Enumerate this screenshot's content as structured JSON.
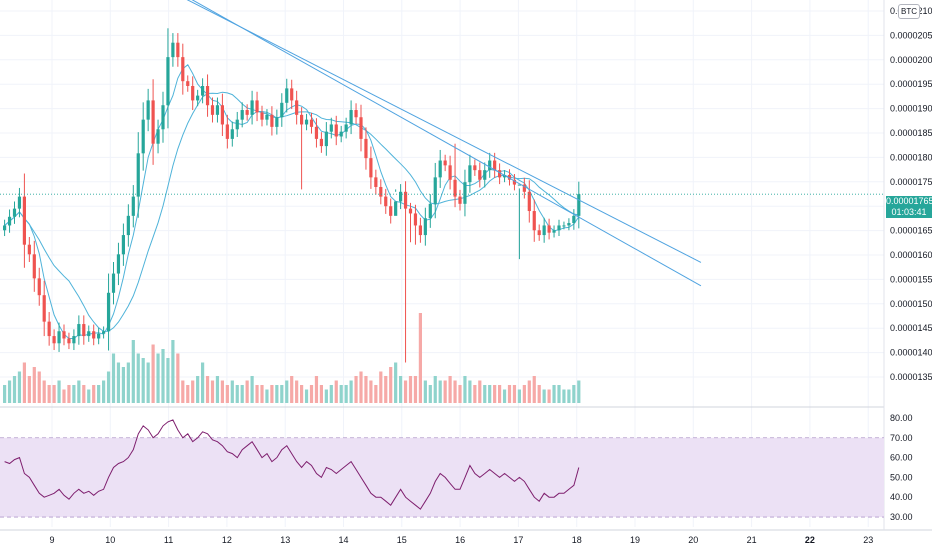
{
  "symbol_badge": "BTC",
  "last_price": {
    "value_label": "0.00001765",
    "countdown": "01:03:41",
    "value": 1.765e-05
  },
  "colors": {
    "up": "#26a69a",
    "down": "#ef5350",
    "ma": "#4fb3d9",
    "trendline": "#4fa3e0",
    "rsi_line": "#7e1f6e",
    "rsi_band": "#ece1f5"
  },
  "chart_data": [
    {
      "type": "candlestick",
      "title": "",
      "x_tick_labels": [
        "9",
        "10",
        "11",
        "12",
        "13",
        "14",
        "15",
        "16",
        "17",
        "18",
        "19",
        "20",
        "21",
        "22",
        "23"
      ],
      "bold_x_ticks": [
        "22"
      ],
      "y_tick_labels": [
        "0.00002100",
        "0.00002050",
        "0.00002000",
        "0.00001950",
        "0.00001900",
        "0.00001850",
        "0.00001800",
        "0.00001750",
        "0.00001700",
        "0.00001650",
        "0.00001600",
        "0.00001550",
        "0.00001500",
        "0.00001450",
        "0.00001400",
        "0.00001350"
      ],
      "ylim": [
        1.335e-05,
        2.148e-05
      ],
      "closes": [
        1.7e-05,
        1.718e-05,
        1.735e-05,
        1.76e-05,
        1.66e-05,
        1.64e-05,
        1.59e-05,
        1.555e-05,
        1.5e-05,
        1.47e-05,
        1.455e-05,
        1.48e-05,
        1.465e-05,
        1.455e-05,
        1.47e-05,
        1.495e-05,
        1.47e-05,
        1.48e-05,
        1.465e-05,
        1.475e-05,
        1.48e-05,
        1.56e-05,
        1.6e-05,
        1.64e-05,
        1.68e-05,
        1.72e-05,
        1.76e-05,
        1.85e-05,
        1.92e-05,
        1.96e-05,
        1.87e-05,
        1.9e-05,
        1.95e-05,
        2.05e-05,
        2.08e-05,
        2.05e-05,
        2e-05,
        1.99e-05,
        1.96e-05,
        1.97e-05,
        1.99e-05,
        1.95e-05,
        1.93e-05,
        1.95e-05,
        1.91e-05,
        1.88e-05,
        1.9e-05,
        1.92e-05,
        1.94e-05,
        1.93e-05,
        1.96e-05,
        1.935e-05,
        1.92e-05,
        1.93e-05,
        1.905e-05,
        1.925e-05,
        1.955e-05,
        1.985e-05,
        1.96e-05,
        1.93e-05,
        1.91e-05,
        1.92e-05,
        1.905e-05,
        1.88e-05,
        1.865e-05,
        1.895e-05,
        1.91e-05,
        1.885e-05,
        1.895e-05,
        1.91e-05,
        1.94e-05,
        1.925e-05,
        1.88e-05,
        1.84e-05,
        1.8e-05,
        1.78e-05,
        1.76e-05,
        1.74e-05,
        1.72e-05,
        1.75e-05,
        1.77e-05,
        1.735e-05,
        1.725e-05,
        1.7e-05,
        1.68e-05,
        1.715e-05,
        1.745e-05,
        1.8e-05,
        1.835e-05,
        1.825e-05,
        1.795e-05,
        1.76e-05,
        1.745e-05,
        1.79e-05,
        1.825e-05,
        1.815e-05,
        1.795e-05,
        1.815e-05,
        1.835e-05,
        1.815e-05,
        1.8e-05,
        1.805e-05,
        1.795e-05,
        1.785e-05,
        1.785e-05,
        1.77e-05,
        1.73e-05,
        1.69e-05,
        1.68e-05,
        1.7e-05,
        1.685e-05,
        1.69e-05,
        1.7e-05,
        1.7e-05,
        1.705e-05,
        1.72e-05,
        1.765e-05
      ],
      "sma_short_label": "",
      "sma_long_label": ""
    },
    {
      "type": "bar",
      "title": "",
      "series": [
        {
          "values": [
            0.2,
            0.25,
            0.3,
            0.35,
            0.45,
            0.3,
            0.4,
            0.35,
            0.25,
            0.2,
            0.2,
            0.25,
            0.15,
            0.2,
            0.2,
            0.25,
            0.2,
            0.15,
            0.2,
            0.2,
            0.25,
            0.35,
            0.55,
            0.45,
            0.4,
            0.45,
            0.7,
            0.55,
            0.5,
            0.45,
            0.65,
            0.55,
            0.6,
            0.5,
            0.7,
            0.55,
            0.25,
            0.2,
            0.25,
            0.3,
            0.45,
            0.3,
            0.25,
            0.3,
            0.25,
            0.2,
            0.25,
            0.2,
            0.2,
            0.25,
            0.3,
            0.2,
            0.2,
            0.15,
            0.2,
            0.2,
            0.2,
            0.25,
            0.3,
            0.25,
            0.2,
            0.15,
            0.2,
            0.3,
            0.2,
            0.15,
            0.2,
            0.25,
            0.2,
            0.2,
            0.25,
            0.3,
            0.35,
            0.3,
            0.25,
            0.2,
            0.35,
            0.3,
            0.4,
            0.45,
            0.3,
            0.25,
            0.3,
            0.3,
            1.0,
            0.25,
            0.2,
            0.3,
            0.25,
            0.25,
            0.3,
            0.25,
            0.2,
            0.3,
            0.25,
            0.2,
            0.25,
            0.2,
            0.2,
            0.2,
            0.2,
            0.15,
            0.2,
            0.2,
            0.15,
            0.2,
            0.25,
            0.3,
            0.2,
            0.15,
            0.15,
            0.2,
            0.2,
            0.15,
            0.15,
            0.2,
            0.25
          ]
        }
      ]
    },
    {
      "type": "line",
      "title": "",
      "y_tick_labels": [
        "80.00",
        "70.00",
        "60.00",
        "50.00",
        "40.00",
        "30.00"
      ],
      "ylim": [
        27,
        82
      ],
      "band": [
        30,
        70
      ],
      "series": [
        {
          "values": [
            58,
            57,
            59,
            60,
            52,
            50,
            46,
            42,
            40,
            41,
            42,
            44,
            41,
            39,
            42,
            44,
            42,
            43,
            41,
            43,
            44,
            50,
            55,
            57,
            58,
            60,
            64,
            72,
            76,
            74,
            70,
            72,
            76,
            78,
            79,
            74,
            70,
            72,
            68,
            70,
            73,
            72,
            69,
            68,
            66,
            63,
            62,
            60,
            64,
            66,
            68,
            64,
            60,
            62,
            58,
            60,
            64,
            66,
            62,
            58,
            55,
            58,
            56,
            52,
            50,
            55,
            54,
            52,
            54,
            56,
            58,
            54,
            50,
            46,
            42,
            40,
            40,
            38,
            36,
            40,
            44,
            40,
            38,
            36,
            34,
            38,
            42,
            48,
            52,
            50,
            47,
            44,
            44,
            50,
            56,
            52,
            50,
            52,
            54,
            52,
            50,
            52,
            50,
            48,
            50,
            48,
            44,
            40,
            38,
            42,
            40,
            40,
            42,
            42,
            44,
            46,
            55
          ]
        }
      ]
    }
  ]
}
